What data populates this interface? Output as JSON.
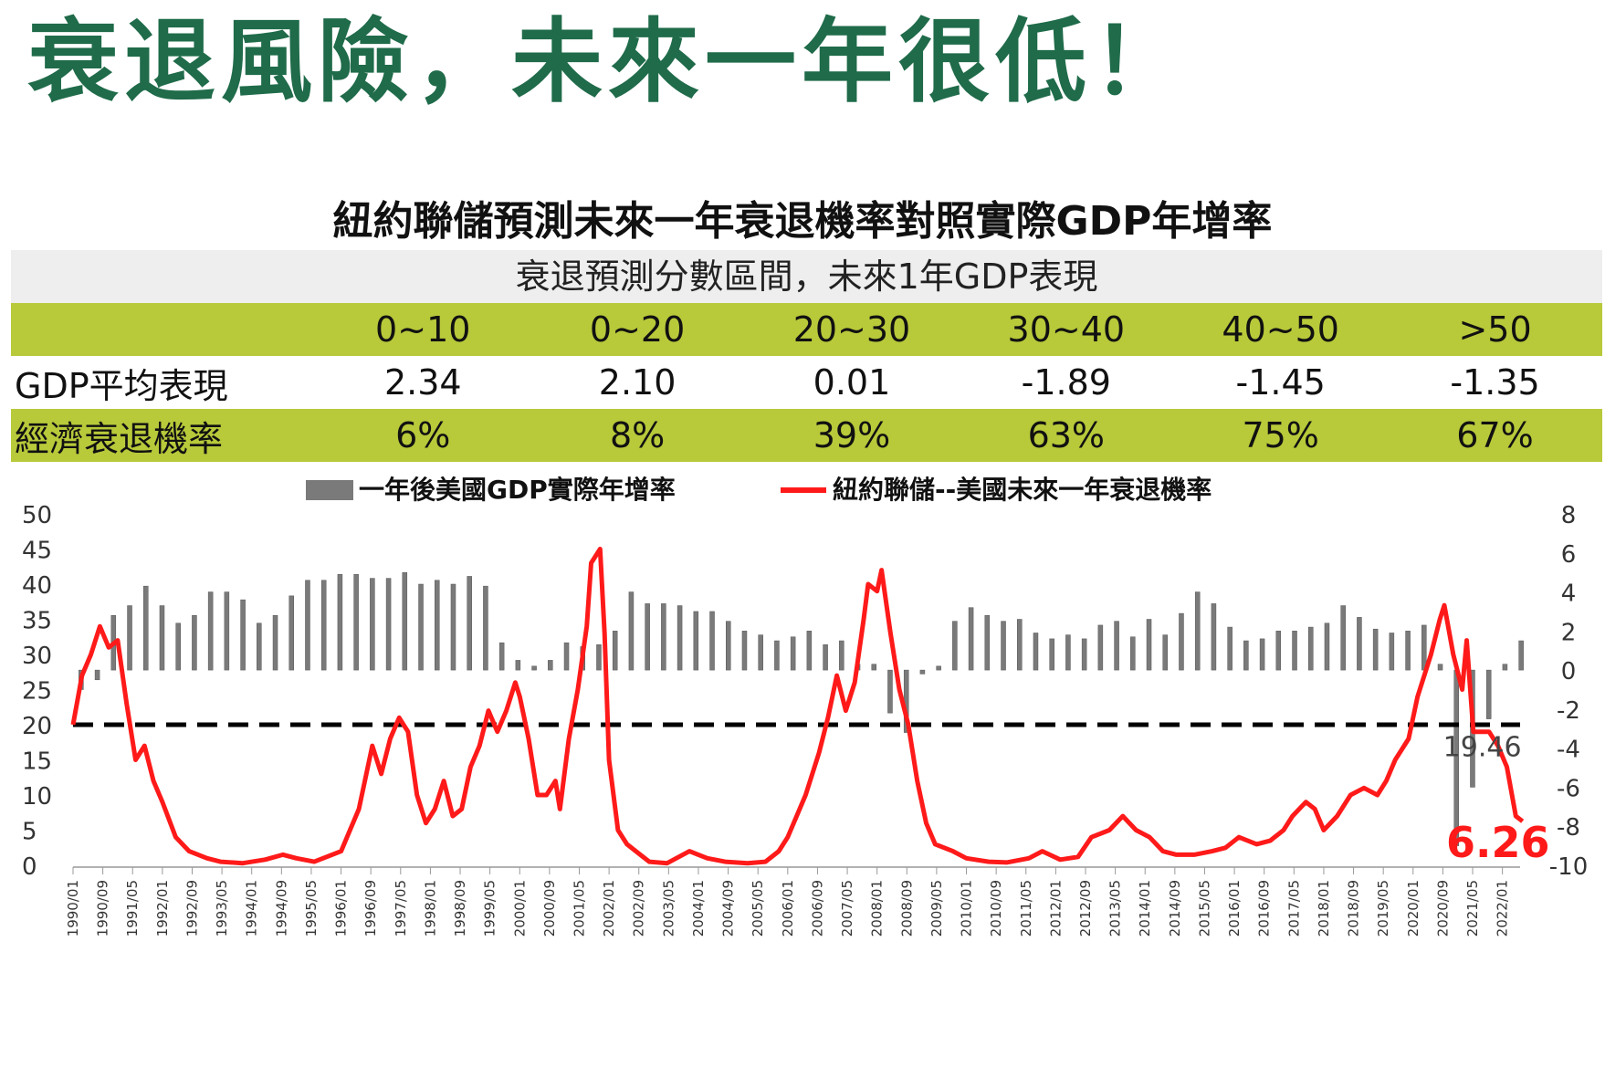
{
  "header": {
    "title": "衰退風險，未來一年很低！"
  },
  "table": {
    "title": "紐約聯儲預測未來一年衰退機率對照實際GDP年增率",
    "subheader": "衰退預測分數區間，未來1年GDP表現",
    "ranges": [
      "0~10",
      "0~20",
      "20~30",
      "30~40",
      "40~50",
      ">50"
    ],
    "gdp_label": "GDP平均表現",
    "gdp": [
      "2.34",
      "2.10",
      "0.01",
      "-1.89",
      "-1.45",
      "-1.35"
    ],
    "prob_label": "經濟衰退機率",
    "prob": [
      "6%",
      "8%",
      "39%",
      "63%",
      "75%",
      "67%"
    ],
    "colors": {
      "band": "#b8c93a",
      "subheader_bg": "#eeeeee",
      "title_green": "#1f6b4a"
    }
  },
  "chart_data": {
    "type": "bar+line",
    "legend": [
      "一年後美國GDP實際年增率",
      "紐約聯儲--美國未來一年衰退機率"
    ],
    "legend_position": "top",
    "y_left": {
      "min": 0,
      "max": 50,
      "ticks": [
        "50",
        "45",
        "40",
        "35",
        "30",
        "25",
        "20",
        "15",
        "10",
        "5",
        "0"
      ]
    },
    "y_right": {
      "min": -10,
      "max": 8,
      "ticks": [
        "8",
        "6",
        "4",
        "2",
        "0",
        "-2",
        "-4",
        "-6",
        "-8",
        "-10"
      ]
    },
    "x_ticks": [
      "1990/01",
      "1990/09",
      "1991/05",
      "1992/01",
      "1992/09",
      "1993/05",
      "1994/01",
      "1994/09",
      "1995/05",
      "1996/01",
      "1996/09",
      "1997/05",
      "1998/01",
      "1998/09",
      "1999/05",
      "2000/01",
      "2000/09",
      "2001/05",
      "2002/01",
      "2002/09",
      "2003/05",
      "2004/01",
      "2004/09",
      "2005/05",
      "2006/01",
      "2006/09",
      "2007/05",
      "2008/01",
      "2008/09",
      "2009/05",
      "2010/01",
      "2010/09",
      "2011/05",
      "2012/01",
      "2012/09",
      "2013/05",
      "2014/01",
      "2014/09",
      "2015/05",
      "2016/01",
      "2016/09",
      "2017/05",
      "2018/01",
      "2018/09",
      "2019/05",
      "2020/01",
      "2020/09",
      "2021/05",
      "2022/01"
    ],
    "gdp_bars": {
      "name": "一年後美國GDP實際年增率",
      "axis": "right",
      "color": "#7a7a7a",
      "values": [
        -1,
        -0.5,
        2.8,
        3.3,
        4.3,
        3.3,
        2.4,
        2.8,
        4.0,
        4.0,
        3.6,
        2.4,
        2.8,
        3.8,
        4.6,
        4.6,
        4.9,
        4.9,
        4.7,
        4.7,
        5.0,
        4.4,
        4.6,
        4.4,
        4.8,
        4.3,
        1.4,
        0.5,
        0.2,
        0.5,
        1.4,
        1.2,
        1.3,
        2.0,
        4.0,
        3.4,
        3.4,
        3.3,
        3.0,
        3.0,
        2.5,
        2.0,
        1.8,
        1.5,
        1.7,
        2.0,
        1.3,
        1.5,
        0.3,
        0.3,
        -2.2,
        -3.2,
        -0.2,
        0.2,
        2.5,
        3.2,
        2.8,
        2.5,
        2.6,
        1.9,
        1.6,
        1.8,
        1.6,
        2.3,
        2.5,
        1.7,
        2.6,
        1.8,
        2.9,
        4.0,
        3.4,
        2.2,
        1.5,
        1.6,
        2.0,
        2.0,
        2.2,
        2.4,
        3.3,
        2.7,
        2.1,
        1.9,
        2.0,
        2.3,
        0.3,
        -9.0,
        -6.0,
        -2.5,
        0.3,
        1.5
      ]
    },
    "recession_prob": {
      "name": "紐約聯儲--美國未來一年衰退機率",
      "axis": "left",
      "color": "#ff1a1a",
      "points": [
        [
          1990.0,
          20
        ],
        [
          1990.2,
          27
        ],
        [
          1990.4,
          30
        ],
        [
          1990.6,
          34
        ],
        [
          1990.8,
          31
        ],
        [
          1991.0,
          32
        ],
        [
          1991.2,
          23
        ],
        [
          1991.4,
          15
        ],
        [
          1991.6,
          17
        ],
        [
          1991.8,
          12
        ],
        [
          1992.0,
          9
        ],
        [
          1992.3,
          4
        ],
        [
          1992.6,
          2
        ],
        [
          1993.0,
          1
        ],
        [
          1993.3,
          0.5
        ],
        [
          1993.8,
          0.3
        ],
        [
          1994.3,
          0.8
        ],
        [
          1994.7,
          1.5
        ],
        [
          1995.0,
          1
        ],
        [
          1995.4,
          0.5
        ],
        [
          1995.8,
          1.5
        ],
        [
          1996.0,
          2
        ],
        [
          1996.4,
          8
        ],
        [
          1996.7,
          17
        ],
        [
          1996.9,
          13
        ],
        [
          1997.1,
          18
        ],
        [
          1997.3,
          21
        ],
        [
          1997.5,
          19
        ],
        [
          1997.7,
          10
        ],
        [
          1997.9,
          6
        ],
        [
          1998.1,
          8
        ],
        [
          1998.3,
          12
        ],
        [
          1998.5,
          7
        ],
        [
          1998.7,
          8
        ],
        [
          1998.9,
          14
        ],
        [
          1999.1,
          17
        ],
        [
          1999.3,
          22
        ],
        [
          1999.5,
          19
        ],
        [
          1999.7,
          22
        ],
        [
          1999.9,
          26
        ],
        [
          2000.0,
          24
        ],
        [
          2000.2,
          18
        ],
        [
          2000.4,
          10
        ],
        [
          2000.6,
          10
        ],
        [
          2000.8,
          12
        ],
        [
          2000.9,
          8
        ],
        [
          2001.1,
          18
        ],
        [
          2001.3,
          25
        ],
        [
          2001.5,
          34
        ],
        [
          2001.6,
          43
        ],
        [
          2001.8,
          45
        ],
        [
          2001.9,
          33
        ],
        [
          2002.0,
          15
        ],
        [
          2002.2,
          5
        ],
        [
          2002.4,
          3
        ],
        [
          2002.6,
          2
        ],
        [
          2002.9,
          0.5
        ],
        [
          2003.3,
          0.3
        ],
        [
          2003.8,
          2
        ],
        [
          2004.2,
          1
        ],
        [
          2004.6,
          0.5
        ],
        [
          2005.1,
          0.3
        ],
        [
          2005.5,
          0.5
        ],
        [
          2005.8,
          2
        ],
        [
          2006.0,
          4
        ],
        [
          2006.4,
          10
        ],
        [
          2006.7,
          16
        ],
        [
          2006.9,
          21
        ],
        [
          2007.1,
          27
        ],
        [
          2007.3,
          22
        ],
        [
          2007.5,
          26
        ],
        [
          2007.7,
          35
        ],
        [
          2007.8,
          40
        ],
        [
          2008.0,
          39
        ],
        [
          2008.1,
          42
        ],
        [
          2008.3,
          33
        ],
        [
          2008.5,
          25
        ],
        [
          2008.7,
          20
        ],
        [
          2008.9,
          12
        ],
        [
          2009.1,
          6
        ],
        [
          2009.3,
          3
        ],
        [
          2009.7,
          2
        ],
        [
          2010.0,
          1
        ],
        [
          2010.5,
          0.5
        ],
        [
          2010.9,
          0.4
        ],
        [
          2011.4,
          1
        ],
        [
          2011.7,
          2
        ],
        [
          2012.1,
          0.8
        ],
        [
          2012.5,
          1.2
        ],
        [
          2012.8,
          4
        ],
        [
          2013.2,
          5
        ],
        [
          2013.5,
          7
        ],
        [
          2013.8,
          5
        ],
        [
          2014.1,
          4
        ],
        [
          2014.4,
          2
        ],
        [
          2014.7,
          1.5
        ],
        [
          2015.1,
          1.5
        ],
        [
          2015.5,
          2
        ],
        [
          2015.8,
          2.5
        ],
        [
          2016.1,
          4
        ],
        [
          2016.5,
          3
        ],
        [
          2016.8,
          3.5
        ],
        [
          2017.1,
          5
        ],
        [
          2017.3,
          7
        ],
        [
          2017.6,
          9
        ],
        [
          2017.8,
          8
        ],
        [
          2018.0,
          5
        ],
        [
          2018.3,
          7
        ],
        [
          2018.6,
          10
        ],
        [
          2018.9,
          11
        ],
        [
          2019.2,
          10
        ],
        [
          2019.4,
          12
        ],
        [
          2019.6,
          15
        ],
        [
          2019.9,
          18
        ],
        [
          2020.1,
          24
        ],
        [
          2020.4,
          30
        ],
        [
          2020.6,
          35
        ],
        [
          2020.7,
          37
        ],
        [
          2020.9,
          30
        ],
        [
          2021.1,
          25
        ],
        [
          2021.2,
          32
        ],
        [
          2021.35,
          19
        ],
        [
          2021.5,
          19
        ],
        [
          2021.7,
          19
        ],
        [
          2021.9,
          17
        ],
        [
          2022.1,
          14
        ],
        [
          2022.3,
          7
        ],
        [
          2022.45,
          6.26
        ]
      ]
    },
    "threshold": {
      "value": 20,
      "style": "dashed"
    },
    "annotations": [
      {
        "text": "19.46"
      },
      {
        "text": "6.26"
      }
    ]
  }
}
